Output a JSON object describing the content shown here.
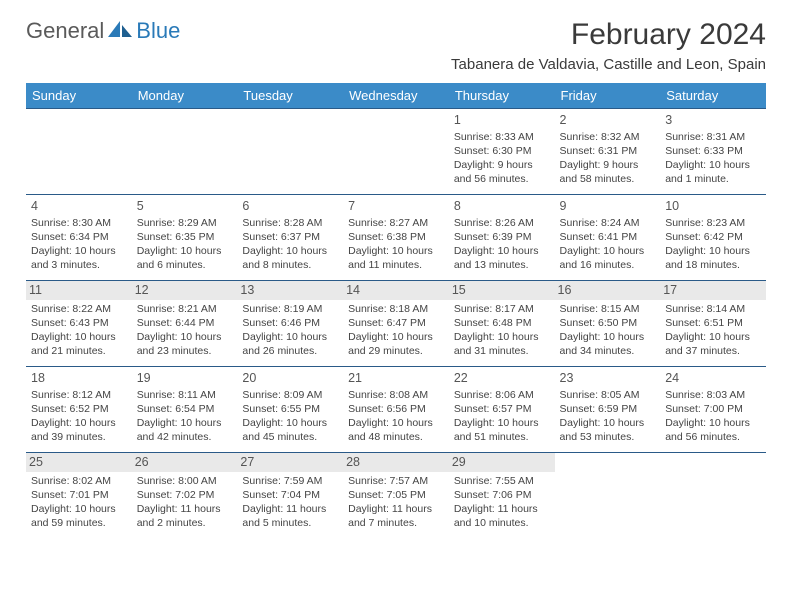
{
  "logo": {
    "part1": "General",
    "part2": "Blue"
  },
  "title": "February 2024",
  "location": "Tabanera de Valdavia, Castille and Leon, Spain",
  "weekdays": [
    "Sunday",
    "Monday",
    "Tuesday",
    "Wednesday",
    "Thursday",
    "Friday",
    "Saturday"
  ],
  "colors": {
    "header_bg": "#3b8bc8",
    "header_text": "#ffffff",
    "row_border": "#2a5a88",
    "shade_bg": "#e9e9e9",
    "logo_gray": "#5a5a5a",
    "logo_blue": "#2a7ab8",
    "text": "#444444"
  },
  "typography": {
    "title_fontsize": 30,
    "location_fontsize": 15,
    "weekday_fontsize": 13,
    "daynum_fontsize": 12.5,
    "body_fontsize": 10.5
  },
  "layout": {
    "columns": 7,
    "rows": 5,
    "shaded_week_indices": [
      2,
      4
    ],
    "first_day_weekday_index": 4
  },
  "days": [
    {
      "n": "1",
      "sunrise": "8:33 AM",
      "sunset": "6:30 PM",
      "daylight": "9 hours and 56 minutes."
    },
    {
      "n": "2",
      "sunrise": "8:32 AM",
      "sunset": "6:31 PM",
      "daylight": "9 hours and 58 minutes."
    },
    {
      "n": "3",
      "sunrise": "8:31 AM",
      "sunset": "6:33 PM",
      "daylight": "10 hours and 1 minute."
    },
    {
      "n": "4",
      "sunrise": "8:30 AM",
      "sunset": "6:34 PM",
      "daylight": "10 hours and 3 minutes."
    },
    {
      "n": "5",
      "sunrise": "8:29 AM",
      "sunset": "6:35 PM",
      "daylight": "10 hours and 6 minutes."
    },
    {
      "n": "6",
      "sunrise": "8:28 AM",
      "sunset": "6:37 PM",
      "daylight": "10 hours and 8 minutes."
    },
    {
      "n": "7",
      "sunrise": "8:27 AM",
      "sunset": "6:38 PM",
      "daylight": "10 hours and 11 minutes."
    },
    {
      "n": "8",
      "sunrise": "8:26 AM",
      "sunset": "6:39 PM",
      "daylight": "10 hours and 13 minutes."
    },
    {
      "n": "9",
      "sunrise": "8:24 AM",
      "sunset": "6:41 PM",
      "daylight": "10 hours and 16 minutes."
    },
    {
      "n": "10",
      "sunrise": "8:23 AM",
      "sunset": "6:42 PM",
      "daylight": "10 hours and 18 minutes."
    },
    {
      "n": "11",
      "sunrise": "8:22 AM",
      "sunset": "6:43 PM",
      "daylight": "10 hours and 21 minutes."
    },
    {
      "n": "12",
      "sunrise": "8:21 AM",
      "sunset": "6:44 PM",
      "daylight": "10 hours and 23 minutes."
    },
    {
      "n": "13",
      "sunrise": "8:19 AM",
      "sunset": "6:46 PM",
      "daylight": "10 hours and 26 minutes."
    },
    {
      "n": "14",
      "sunrise": "8:18 AM",
      "sunset": "6:47 PM",
      "daylight": "10 hours and 29 minutes."
    },
    {
      "n": "15",
      "sunrise": "8:17 AM",
      "sunset": "6:48 PM",
      "daylight": "10 hours and 31 minutes."
    },
    {
      "n": "16",
      "sunrise": "8:15 AM",
      "sunset": "6:50 PM",
      "daylight": "10 hours and 34 minutes."
    },
    {
      "n": "17",
      "sunrise": "8:14 AM",
      "sunset": "6:51 PM",
      "daylight": "10 hours and 37 minutes."
    },
    {
      "n": "18",
      "sunrise": "8:12 AM",
      "sunset": "6:52 PM",
      "daylight": "10 hours and 39 minutes."
    },
    {
      "n": "19",
      "sunrise": "8:11 AM",
      "sunset": "6:54 PM",
      "daylight": "10 hours and 42 minutes."
    },
    {
      "n": "20",
      "sunrise": "8:09 AM",
      "sunset": "6:55 PM",
      "daylight": "10 hours and 45 minutes."
    },
    {
      "n": "21",
      "sunrise": "8:08 AM",
      "sunset": "6:56 PM",
      "daylight": "10 hours and 48 minutes."
    },
    {
      "n": "22",
      "sunrise": "8:06 AM",
      "sunset": "6:57 PM",
      "daylight": "10 hours and 51 minutes."
    },
    {
      "n": "23",
      "sunrise": "8:05 AM",
      "sunset": "6:59 PM",
      "daylight": "10 hours and 53 minutes."
    },
    {
      "n": "24",
      "sunrise": "8:03 AM",
      "sunset": "7:00 PM",
      "daylight": "10 hours and 56 minutes."
    },
    {
      "n": "25",
      "sunrise": "8:02 AM",
      "sunset": "7:01 PM",
      "daylight": "10 hours and 59 minutes."
    },
    {
      "n": "26",
      "sunrise": "8:00 AM",
      "sunset": "7:02 PM",
      "daylight": "11 hours and 2 minutes."
    },
    {
      "n": "27",
      "sunrise": "7:59 AM",
      "sunset": "7:04 PM",
      "daylight": "11 hours and 5 minutes."
    },
    {
      "n": "28",
      "sunrise": "7:57 AM",
      "sunset": "7:05 PM",
      "daylight": "11 hours and 7 minutes."
    },
    {
      "n": "29",
      "sunrise": "7:55 AM",
      "sunset": "7:06 PM",
      "daylight": "11 hours and 10 minutes."
    }
  ],
  "labels": {
    "sunrise": "Sunrise:",
    "sunset": "Sunset:",
    "daylight": "Daylight:"
  }
}
